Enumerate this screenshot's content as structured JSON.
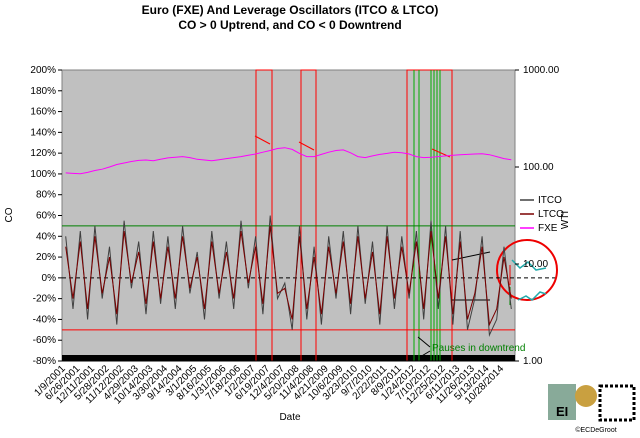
{
  "chart_data": {
    "type": "line",
    "title": "Euro (FXE) And Leverage Oscillators (ITCO & LTCO)",
    "subtitle": "CO > 0 Uptrend, and CO < 0 Downtrend",
    "x_label": "Date",
    "y_label": "CO",
    "y2_label": "WTI",
    "annotation": "Pauses in downtrend",
    "credit": "©ECDeGroot",
    "logo": "EI",
    "categories": [
      "1/9/2001",
      null,
      "6/26/2001",
      null,
      "12/11/2001",
      null,
      "5/28/2002",
      null,
      "11/12/2002",
      null,
      "4/29/2003",
      null,
      "10/14/2003",
      null,
      "3/30/2004",
      null,
      "9/14/2004",
      null,
      "3/1/2005",
      null,
      "8/16/2005",
      null,
      "1/31/2006",
      null,
      "7/18/2006",
      null,
      "1/2/2007",
      null,
      "6/19/2007",
      null,
      "12/4/2007",
      null,
      "5/20/2008",
      null,
      "11/4/2008",
      null,
      "4/21/2009",
      null,
      "10/6/2009",
      null,
      "3/23/2010",
      null,
      "9/7/2010",
      null,
      "2/22/2011",
      null,
      "8/9/2011",
      null,
      "1/24/2012",
      null,
      "7/10/2012",
      null,
      "12/25/2012",
      null,
      "6/11/2013",
      null,
      "11/26/2013",
      null,
      "5/13/2014",
      null,
      "10/28/2014",
      null
    ],
    "series": [
      {
        "name": "ITCO",
        "color": "#404040",
        "values": [
          40,
          -30,
          45,
          -40,
          50,
          -20,
          30,
          -45,
          55,
          -10,
          35,
          -35,
          45,
          -25,
          40,
          -30,
          50,
          -15,
          25,
          -40,
          45,
          -20,
          35,
          -30,
          55,
          -10,
          40,
          -35,
          60,
          -20,
          -5,
          -50,
          50,
          -40,
          30,
          -45,
          40,
          -20,
          45,
          -35,
          50,
          -25,
          35,
          -45,
          50,
          -30,
          40,
          -20,
          45,
          -40,
          55,
          -30,
          50,
          -45,
          45,
          -50,
          -20,
          40,
          -55,
          -40,
          30,
          -30
        ]
      },
      {
        "name": "LTCO",
        "color": "#7a0000",
        "values": [
          30,
          -20,
          35,
          -30,
          40,
          -15,
          20,
          -35,
          45,
          -5,
          25,
          -25,
          35,
          -20,
          30,
          -20,
          40,
          -10,
          20,
          -30,
          35,
          -15,
          25,
          -20,
          45,
          -5,
          30,
          -25,
          50,
          -15,
          -10,
          -40,
          40,
          -30,
          20,
          -35,
          30,
          -15,
          35,
          -25,
          40,
          -20,
          25,
          -35,
          40,
          -20,
          30,
          -15,
          35,
          -30,
          45,
          -20,
          40,
          -35,
          35,
          -40,
          -15,
          30,
          -45,
          -30,
          20,
          -20
        ]
      },
      {
        "name": "FXE",
        "color": "#ff00ff",
        "axis": "y2",
        "values": [
          87,
          86,
          85,
          88,
          92,
          95,
          100,
          106,
          110,
          114,
          117,
          118,
          116,
          120,
          124,
          126,
          128,
          125,
          120,
          118,
          116,
          119,
          122,
          125,
          128,
          132,
          136,
          142,
          148,
          155,
          158,
          152,
          138,
          128,
          128,
          135,
          142,
          148,
          150,
          140,
          128,
          125,
          130,
          135,
          138,
          142,
          140,
          136,
          128,
          125,
          126,
          128,
          130,
          132,
          134,
          135,
          136,
          137,
          134,
          128,
          122,
          119
        ]
      }
    ],
    "ylim": [
      -80,
      200
    ],
    "yticks": [
      {
        "value": -80,
        "label": "-80%"
      },
      {
        "value": -60,
        "label": "-60%"
      },
      {
        "value": -40,
        "label": "-40%"
      },
      {
        "value": -20,
        "label": "-20%"
      },
      {
        "value": 0,
        "label": "0%"
      },
      {
        "value": 20,
        "label": "20%"
      },
      {
        "value": 40,
        "label": "40%"
      },
      {
        "value": 60,
        "label": "60%"
      },
      {
        "value": 80,
        "label": "80%"
      },
      {
        "value": 100,
        "label": "100%"
      },
      {
        "value": 120,
        "label": "120%"
      },
      {
        "value": 140,
        "label": "140%"
      },
      {
        "value": 160,
        "label": "160%"
      },
      {
        "value": 180,
        "label": "180%"
      },
      {
        "value": 200,
        "label": "200%"
      }
    ],
    "y2lim": [
      1,
      1000
    ],
    "y2ticks": [
      {
        "value": 1,
        "label": "1.00"
      },
      {
        "value": 10,
        "label": "10.00"
      },
      {
        "value": 100,
        "label": "100.00"
      },
      {
        "value": 1000,
        "label": "1000.00"
      }
    ],
    "y2_log": true,
    "reference_lines": [
      {
        "value": 50,
        "color": "#008000"
      },
      {
        "value": -50,
        "color": "#ff0000"
      },
      {
        "value": 0,
        "color": "#000000",
        "dashed": true
      }
    ],
    "plot_background": "#c0c0c0"
  }
}
